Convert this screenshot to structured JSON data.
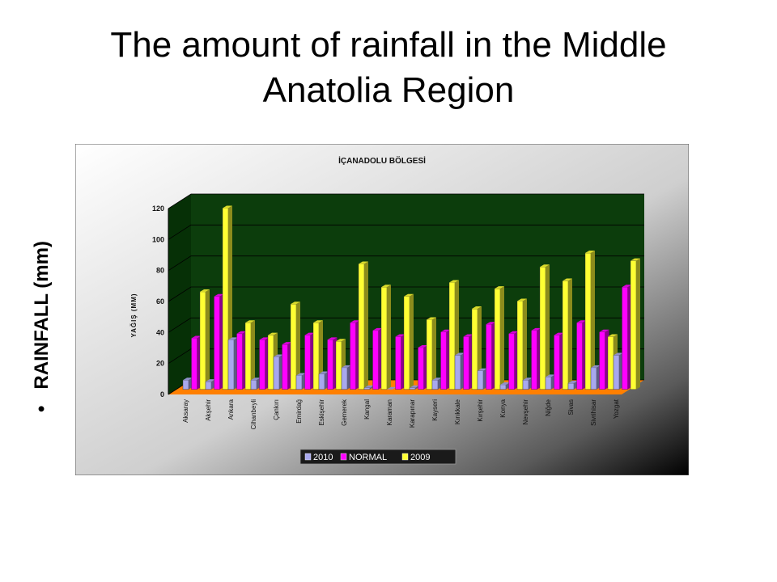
{
  "slide": {
    "title": "The amount of rainfall in the Middle Anatolia Region",
    "side_label": "RAINFALL (mm)",
    "bullet": "•"
  },
  "chart_data": {
    "type": "bar",
    "title": "İÇANADOLU BÖLGESİ",
    "ylabel": "YAĞIŞ (MM)",
    "xlabel": "",
    "ylim": [
      0,
      120
    ],
    "yticks": [
      0,
      20,
      40,
      60,
      80,
      100,
      120
    ],
    "grid": true,
    "legend_position": "bottom",
    "categories": [
      "Aksaray",
      "Akşehir",
      "Ankara",
      "Cihanbeyli",
      "Çankırı",
      "Emirdağ",
      "Eskişehir",
      "Gemerek",
      "Kangal",
      "Karaman",
      "Karapınar",
      "Kayseri",
      "Kırıkkale",
      "Kırşehir",
      "Konya",
      "Nevşehir",
      "Niğde",
      "Sivas",
      "Sivrihisar",
      "Yozgat"
    ],
    "series": [
      {
        "name": "2010",
        "color": "#a8a8ee",
        "values": [
          6,
          5,
          32,
          6,
          21,
          9,
          10,
          14,
          1,
          0,
          1,
          6,
          22,
          12,
          3,
          6,
          8,
          4,
          14,
          22
        ]
      },
      {
        "name": "NORMAL",
        "color": "#ff00ff",
        "values": [
          33,
          60,
          36,
          32,
          29,
          35,
          32,
          43,
          38,
          34,
          27,
          37,
          34,
          42,
          36,
          38,
          35,
          43,
          37,
          66
        ]
      },
      {
        "name": "2009",
        "color": "#ffff33",
        "values": [
          63,
          117,
          43,
          35,
          55,
          43,
          31,
          81,
          66,
          60,
          45,
          69,
          52,
          65,
          57,
          79,
          70,
          88,
          34,
          83
        ]
      }
    ]
  }
}
